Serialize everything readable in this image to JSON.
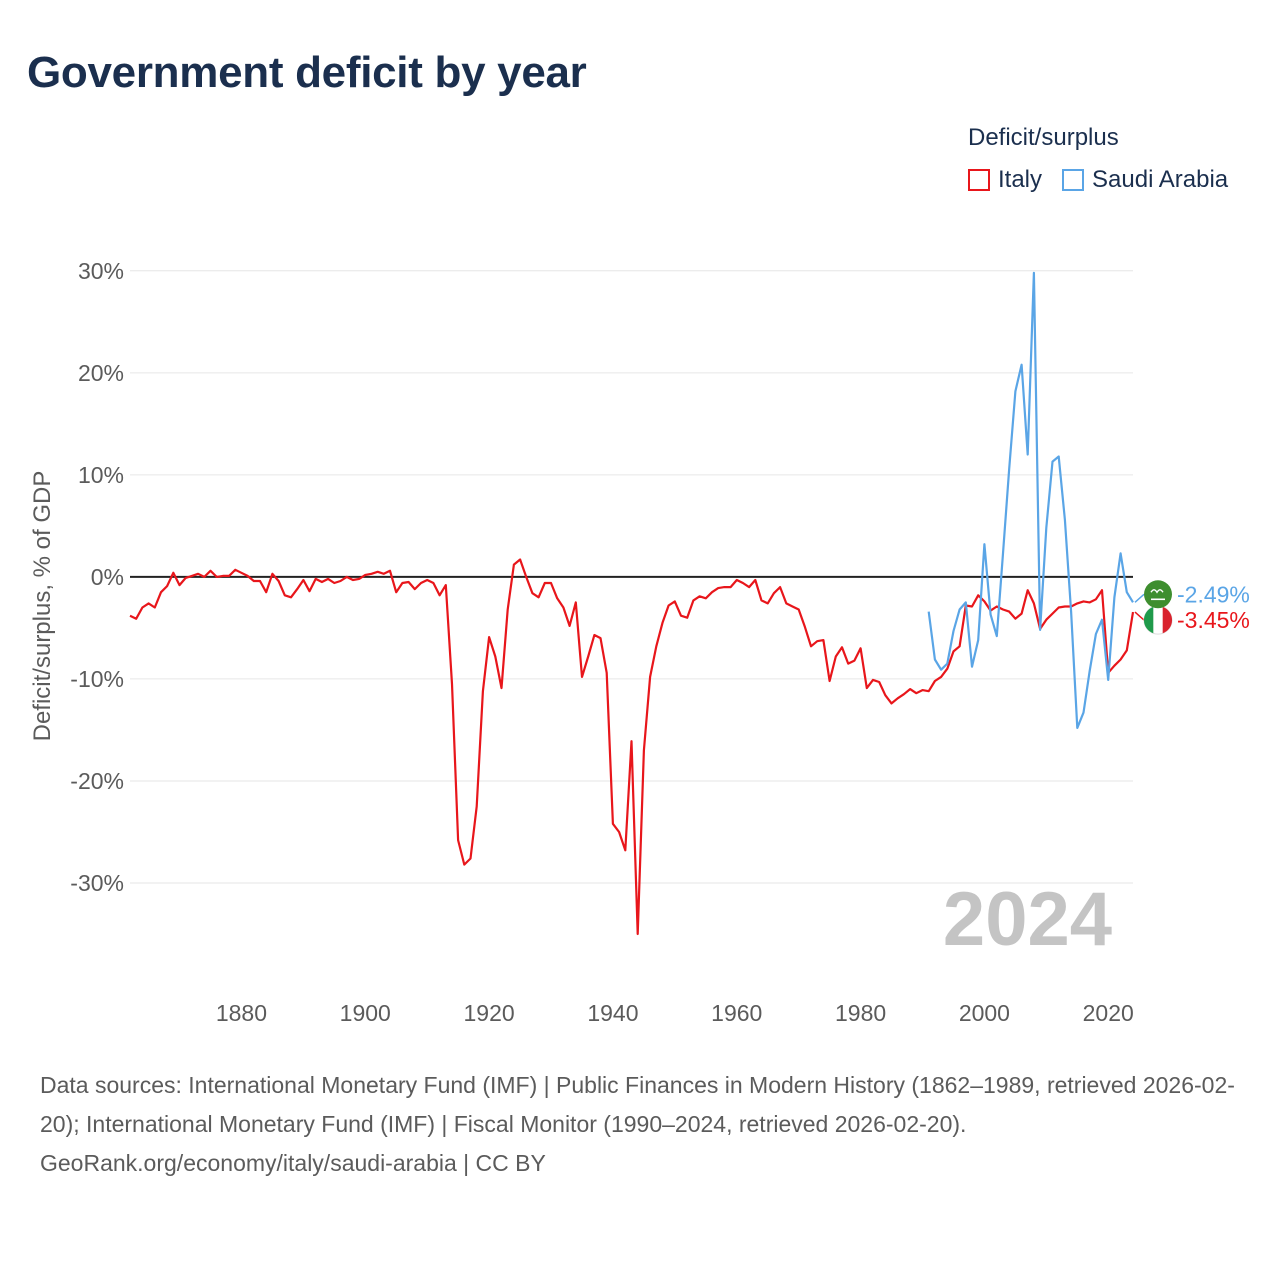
{
  "title": "Government deficit by year",
  "legend": {
    "title": "Deficit/surplus",
    "items": [
      {
        "name": "Italy",
        "color": "#e8161b"
      },
      {
        "name": "Saudi Arabia",
        "color": "#5aa5e6"
      }
    ]
  },
  "footer": {
    "sources": "Data sources: International Monetary Fund (IMF) | Public Finances in Modern History (1862–1989, retrieved 2026-02-20); International Monetary Fund (IMF) | Fiscal Monitor (1990–2024, retrieved 2026-02-20).",
    "credit": "GeoRank.org/economy/italy/saudi-arabia | CC BY"
  },
  "chart_data": {
    "type": "line",
    "ylabel": "Deficit/surplus, % of GDP",
    "xlabel": "",
    "xlim": [
      1862,
      2024
    ],
    "ylim": [
      -40,
      30
    ],
    "yticks": [
      30,
      20,
      10,
      0,
      -10,
      -20,
      -30
    ],
    "ytick_labels": [
      "30%",
      "20%",
      "10%",
      "0%",
      "-10%",
      "-20%",
      "-30%"
    ],
    "xticks": [
      1880,
      1900,
      1920,
      1940,
      1960,
      1980,
      2000,
      2020
    ],
    "xtick_labels": [
      "1880",
      "1900",
      "1920",
      "1940",
      "1960",
      "1980",
      "2000",
      "2020"
    ],
    "year_watermark": "2024",
    "series": [
      {
        "name": "Italy",
        "color": "#e8161b",
        "end_label": "-3.45%",
        "points": [
          [
            1862,
            -3.8
          ],
          [
            1863,
            -4.1
          ],
          [
            1864,
            -3.0
          ],
          [
            1865,
            -2.6
          ],
          [
            1866,
            -3.0
          ],
          [
            1867,
            -1.5
          ],
          [
            1868,
            -0.9
          ],
          [
            1869,
            0.4
          ],
          [
            1870,
            -0.8
          ],
          [
            1871,
            -0.1
          ],
          [
            1872,
            0.1
          ],
          [
            1873,
            0.3
          ],
          [
            1874,
            0.0
          ],
          [
            1875,
            0.6
          ],
          [
            1876,
            0.0
          ],
          [
            1877,
            0.1
          ],
          [
            1878,
            0.1
          ],
          [
            1879,
            0.7
          ],
          [
            1880,
            0.4
          ],
          [
            1881,
            0.1
          ],
          [
            1882,
            -0.4
          ],
          [
            1883,
            -0.4
          ],
          [
            1884,
            -1.5
          ],
          [
            1885,
            0.3
          ],
          [
            1886,
            -0.4
          ],
          [
            1887,
            -1.8
          ],
          [
            1888,
            -2.0
          ],
          [
            1889,
            -1.2
          ],
          [
            1890,
            -0.3
          ],
          [
            1891,
            -1.4
          ],
          [
            1892,
            -0.2
          ],
          [
            1893,
            -0.5
          ],
          [
            1894,
            -0.2
          ],
          [
            1895,
            -0.6
          ],
          [
            1896,
            -0.4
          ],
          [
            1897,
            0.0
          ],
          [
            1898,
            -0.3
          ],
          [
            1899,
            -0.2
          ],
          [
            1900,
            0.2
          ],
          [
            1901,
            0.3
          ],
          [
            1902,
            0.5
          ],
          [
            1903,
            0.3
          ],
          [
            1904,
            0.6
          ],
          [
            1905,
            -1.5
          ],
          [
            1906,
            -0.6
          ],
          [
            1907,
            -0.5
          ],
          [
            1908,
            -1.2
          ],
          [
            1909,
            -0.6
          ],
          [
            1910,
            -0.3
          ],
          [
            1911,
            -0.6
          ],
          [
            1912,
            -1.8
          ],
          [
            1913,
            -0.8
          ],
          [
            1914,
            -10.5
          ],
          [
            1915,
            -25.8
          ],
          [
            1916,
            -28.2
          ],
          [
            1917,
            -27.6
          ],
          [
            1918,
            -22.5
          ],
          [
            1919,
            -11.2
          ],
          [
            1920,
            -5.9
          ],
          [
            1921,
            -7.8
          ],
          [
            1922,
            -10.9
          ],
          [
            1923,
            -3.2
          ],
          [
            1924,
            1.2
          ],
          [
            1925,
            1.7
          ],
          [
            1926,
            0.0
          ],
          [
            1927,
            -1.6
          ],
          [
            1928,
            -2.0
          ],
          [
            1929,
            -0.6
          ],
          [
            1930,
            -0.6
          ],
          [
            1931,
            -2.1
          ],
          [
            1932,
            -3.0
          ],
          [
            1933,
            -4.8
          ],
          [
            1934,
            -2.5
          ],
          [
            1935,
            -9.8
          ],
          [
            1936,
            -7.8
          ],
          [
            1937,
            -5.7
          ],
          [
            1938,
            -6.0
          ],
          [
            1939,
            -9.4
          ],
          [
            1940,
            -24.2
          ],
          [
            1941,
            -25.0
          ],
          [
            1942,
            -26.8
          ],
          [
            1943,
            -16.1
          ],
          [
            1944,
            -35.0
          ],
          [
            1945,
            -17.0
          ],
          [
            1946,
            -9.8
          ],
          [
            1947,
            -6.8
          ],
          [
            1948,
            -4.5
          ],
          [
            1949,
            -2.8
          ],
          [
            1950,
            -2.4
          ],
          [
            1951,
            -3.8
          ],
          [
            1952,
            -4.0
          ],
          [
            1953,
            -2.3
          ],
          [
            1954,
            -1.9
          ],
          [
            1955,
            -2.1
          ],
          [
            1956,
            -1.5
          ],
          [
            1957,
            -1.1
          ],
          [
            1958,
            -1.0
          ],
          [
            1959,
            -1.0
          ],
          [
            1960,
            -0.3
          ],
          [
            1961,
            -0.6
          ],
          [
            1962,
            -1.0
          ],
          [
            1963,
            -0.3
          ],
          [
            1964,
            -2.3
          ],
          [
            1965,
            -2.6
          ],
          [
            1966,
            -1.6
          ],
          [
            1967,
            -1.0
          ],
          [
            1968,
            -2.6
          ],
          [
            1969,
            -2.9
          ],
          [
            1970,
            -3.2
          ],
          [
            1971,
            -4.9
          ],
          [
            1972,
            -6.8
          ],
          [
            1973,
            -6.3
          ],
          [
            1974,
            -6.2
          ],
          [
            1975,
            -10.2
          ],
          [
            1976,
            -7.8
          ],
          [
            1977,
            -6.9
          ],
          [
            1978,
            -8.5
          ],
          [
            1979,
            -8.2
          ],
          [
            1980,
            -7.0
          ],
          [
            1981,
            -10.9
          ],
          [
            1982,
            -10.1
          ],
          [
            1983,
            -10.3
          ],
          [
            1984,
            -11.6
          ],
          [
            1985,
            -12.4
          ],
          [
            1986,
            -11.9
          ],
          [
            1987,
            -11.5
          ],
          [
            1988,
            -11.0
          ],
          [
            1989,
            -11.4
          ],
          [
            1990,
            -11.1
          ],
          [
            1991,
            -11.2
          ],
          [
            1992,
            -10.2
          ],
          [
            1993,
            -9.8
          ],
          [
            1994,
            -9.0
          ],
          [
            1995,
            -7.3
          ],
          [
            1996,
            -6.8
          ],
          [
            1997,
            -2.8
          ],
          [
            1998,
            -2.9
          ],
          [
            1999,
            -1.8
          ],
          [
            2000,
            -2.4
          ],
          [
            2001,
            -3.3
          ],
          [
            2002,
            -2.9
          ],
          [
            2003,
            -3.2
          ],
          [
            2004,
            -3.4
          ],
          [
            2005,
            -4.1
          ],
          [
            2006,
            -3.6
          ],
          [
            2007,
            -1.3
          ],
          [
            2008,
            -2.6
          ],
          [
            2009,
            -5.1
          ],
          [
            2010,
            -4.2
          ],
          [
            2011,
            -3.6
          ],
          [
            2012,
            -3.0
          ],
          [
            2013,
            -2.9
          ],
          [
            2014,
            -2.9
          ],
          [
            2015,
            -2.6
          ],
          [
            2016,
            -2.4
          ],
          [
            2017,
            -2.5
          ],
          [
            2018,
            -2.2
          ],
          [
            2019,
            -1.3
          ],
          [
            2020,
            -9.4
          ],
          [
            2021,
            -8.7
          ],
          [
            2022,
            -8.1
          ],
          [
            2023,
            -7.2
          ],
          [
            2024,
            -3.45
          ]
        ]
      },
      {
        "name": "Saudi Arabia",
        "color": "#5aa5e6",
        "end_label": "-2.49%",
        "points": [
          [
            1991,
            -3.4
          ],
          [
            1992,
            -8.1
          ],
          [
            1993,
            -9.1
          ],
          [
            1994,
            -8.5
          ],
          [
            1995,
            -5.3
          ],
          [
            1996,
            -3.2
          ],
          [
            1997,
            -2.5
          ],
          [
            1998,
            -8.8
          ],
          [
            1999,
            -6.2
          ],
          [
            2000,
            3.2
          ],
          [
            2001,
            -3.7
          ],
          [
            2002,
            -5.8
          ],
          [
            2003,
            2.3
          ],
          [
            2004,
            10.6
          ],
          [
            2005,
            18.2
          ],
          [
            2006,
            20.8
          ],
          [
            2007,
            12.0
          ],
          [
            2008,
            29.8
          ],
          [
            2009,
            -5.2
          ],
          [
            2010,
            4.8
          ],
          [
            2011,
            11.3
          ],
          [
            2012,
            11.8
          ],
          [
            2013,
            5.6
          ],
          [
            2014,
            -3.4
          ],
          [
            2015,
            -14.8
          ],
          [
            2016,
            -13.3
          ],
          [
            2017,
            -9.2
          ],
          [
            2018,
            -5.6
          ],
          [
            2019,
            -4.2
          ],
          [
            2020,
            -10.1
          ],
          [
            2021,
            -2.0
          ],
          [
            2022,
            2.3
          ],
          [
            2023,
            -1.5
          ],
          [
            2024,
            -2.49
          ]
        ]
      }
    ]
  }
}
